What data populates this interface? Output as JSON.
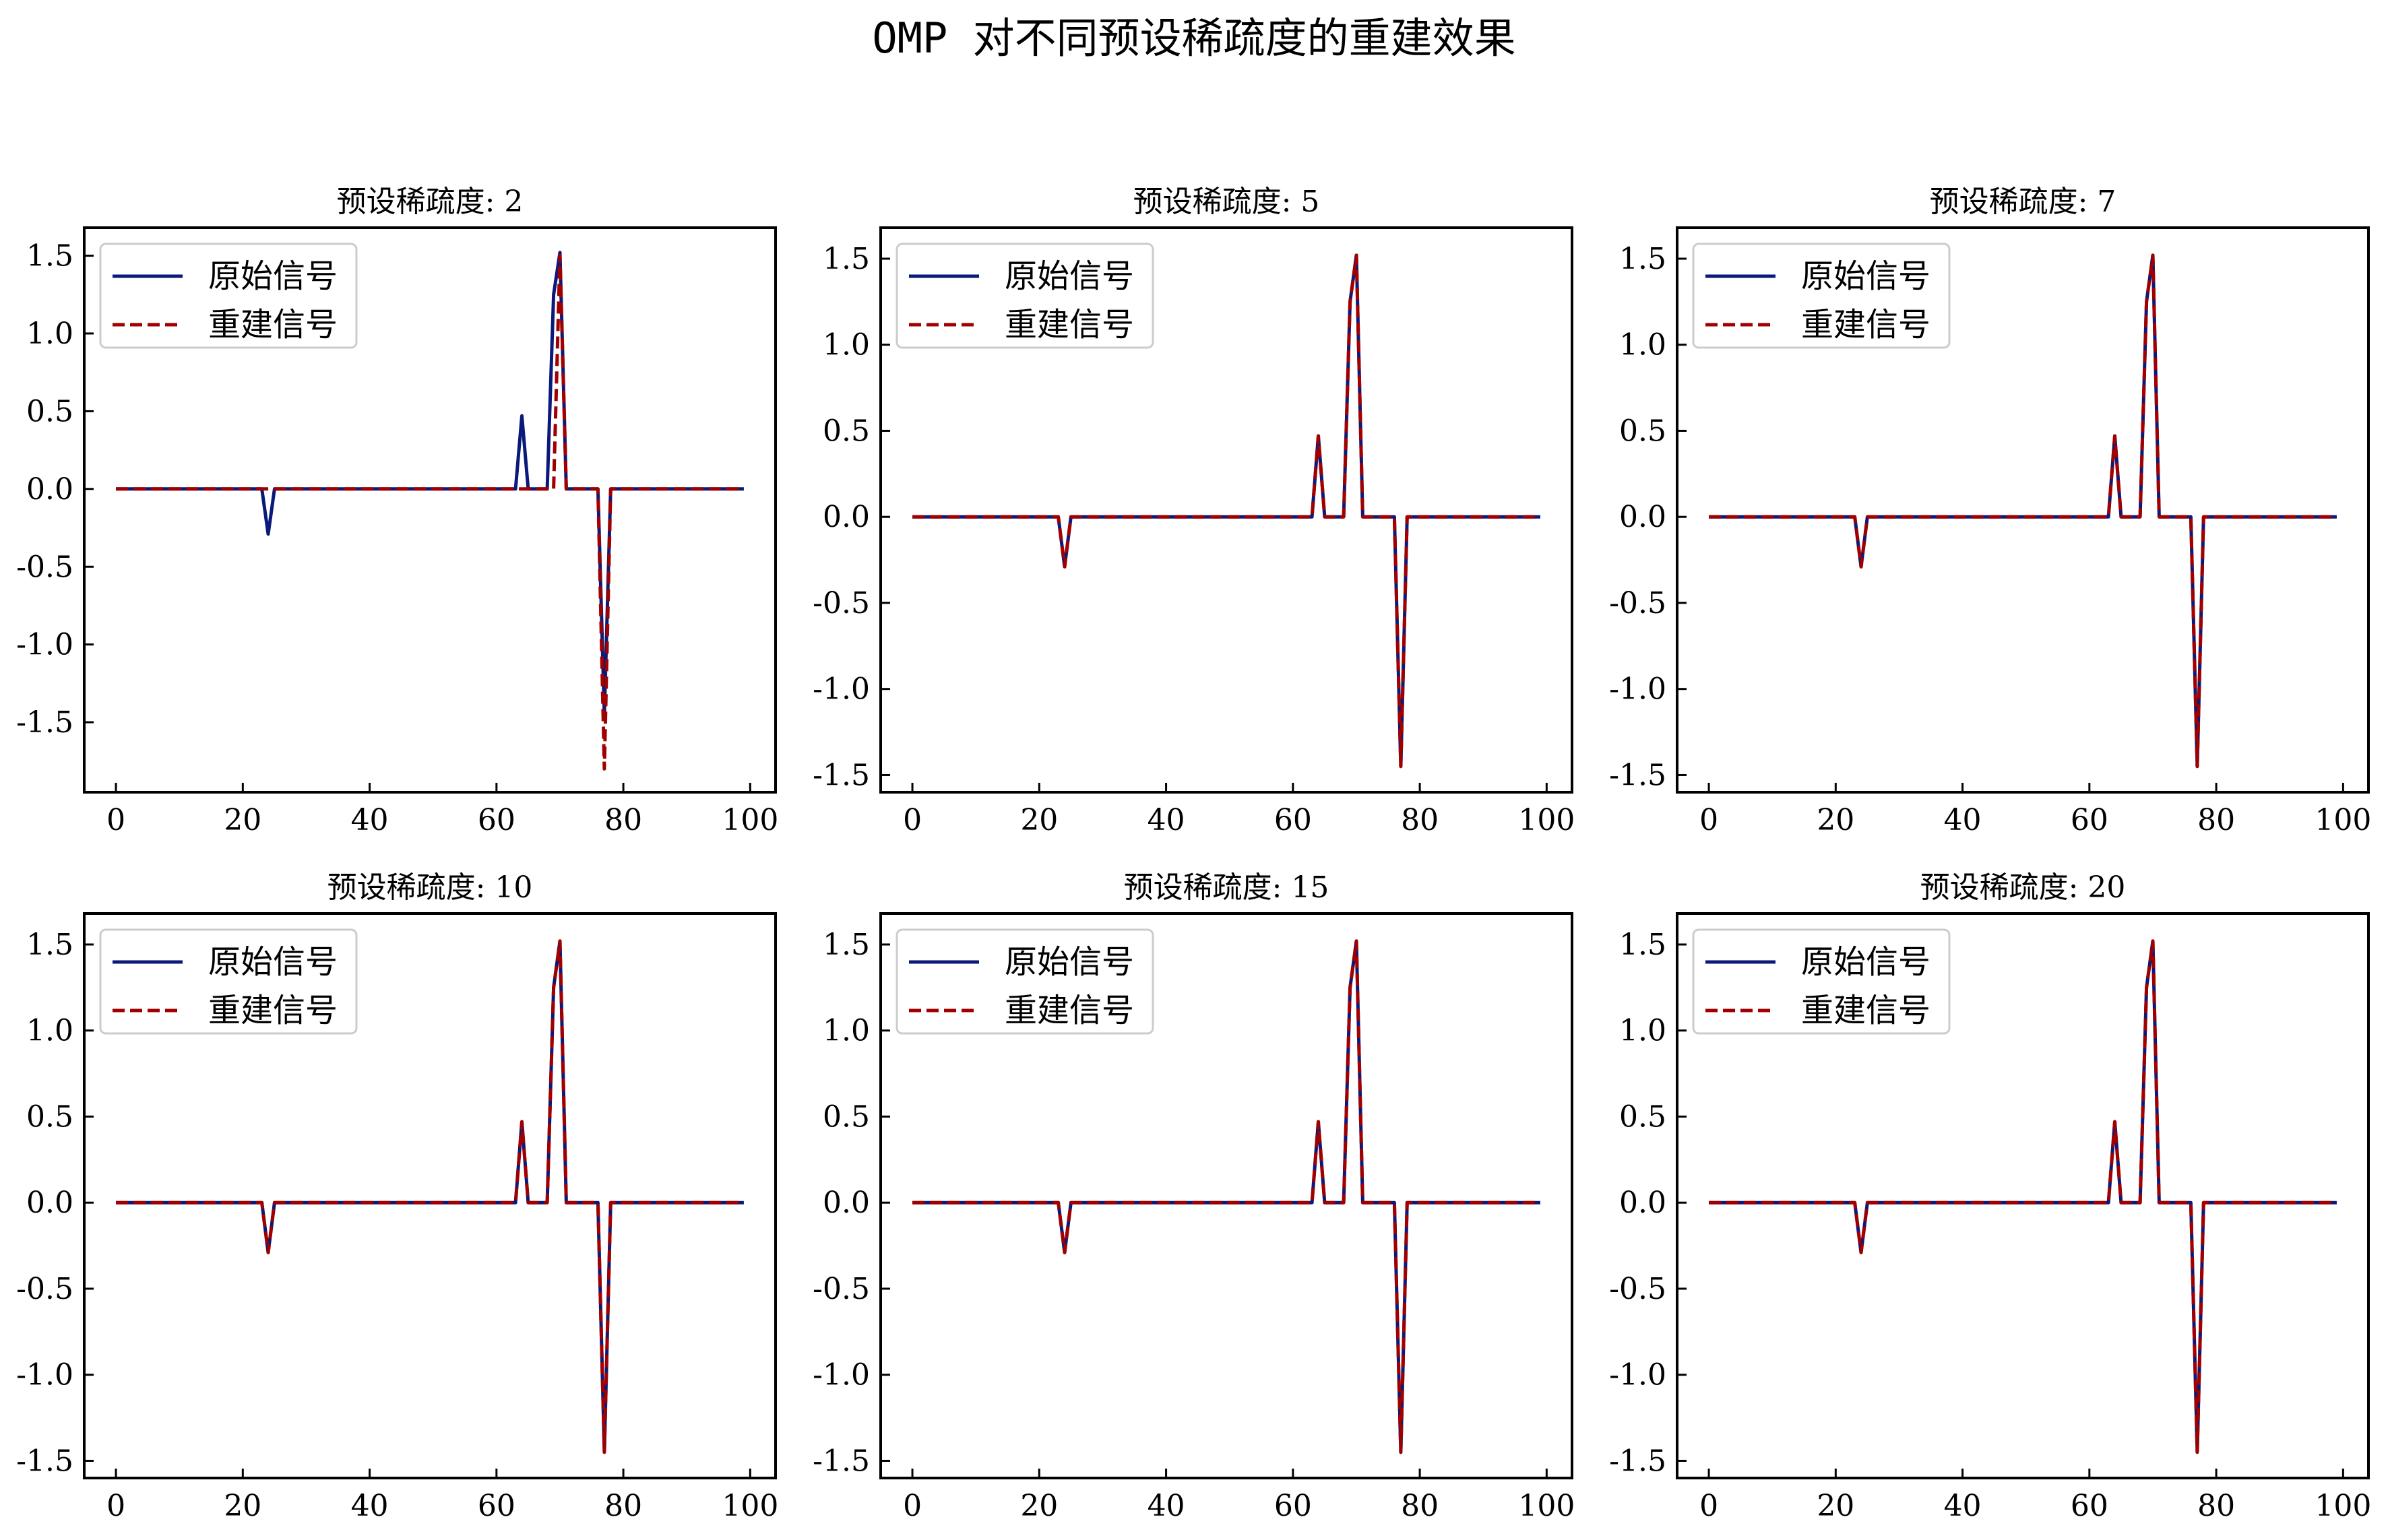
{
  "figure": {
    "title": "OMP 对不同预设稀疏度的重建效果"
  },
  "colors": {
    "original": "#0b1a7a",
    "reconstructed": "#a00000"
  },
  "legend": {
    "original_label": "原始信号",
    "reconstructed_label": "重建信号",
    "placement": "upper-left"
  },
  "chart_data": [
    {
      "type": "line",
      "title": "预设稀疏度: 2",
      "xlim": [
        -5,
        104
      ],
      "ylim": [
        -1.95,
        1.68
      ],
      "xticks": [
        0,
        20,
        40,
        60,
        80,
        100
      ],
      "yticks": [
        -1.5,
        -1.0,
        -0.5,
        0.0,
        0.5,
        1.0,
        1.5
      ],
      "ytick_labels": [
        "-1.5",
        "-1.0",
        "-0.5",
        "0.0",
        "0.5",
        "1.0",
        "1.5"
      ],
      "grid": false,
      "series": [
        {
          "name": "原始信号",
          "style": "solid",
          "x": [
            0,
            23,
            24,
            25,
            63,
            64,
            65,
            68,
            69,
            70,
            71,
            76,
            77,
            78,
            99
          ],
          "y": [
            0,
            0,
            -0.29,
            0,
            0,
            0.47,
            0,
            0,
            1.25,
            1.52,
            0,
            0,
            -1.45,
            0,
            0
          ]
        },
        {
          "name": "重建信号",
          "style": "dashed",
          "x": [
            0,
            69,
            70,
            71,
            76,
            77,
            78,
            99
          ],
          "y": [
            0,
            0,
            1.5,
            0,
            0,
            -1.8,
            0,
            0
          ]
        }
      ]
    },
    {
      "type": "line",
      "title": "预设稀疏度: 5",
      "xlim": [
        -5,
        104
      ],
      "ylim": [
        -1.6,
        1.68
      ],
      "xticks": [
        0,
        20,
        40,
        60,
        80,
        100
      ],
      "yticks": [
        -1.5,
        -1.0,
        -0.5,
        0.0,
        0.5,
        1.0,
        1.5
      ],
      "ytick_labels": [
        "-1.5",
        "-1.0",
        "-0.5",
        "0.0",
        "0.5",
        "1.0",
        "1.5"
      ],
      "grid": false,
      "series": [
        {
          "name": "原始信号",
          "style": "solid",
          "x": [
            0,
            23,
            24,
            25,
            63,
            64,
            65,
            68,
            69,
            70,
            71,
            76,
            77,
            78,
            99
          ],
          "y": [
            0,
            0,
            -0.29,
            0,
            0,
            0.47,
            0,
            0,
            1.25,
            1.52,
            0,
            0,
            -1.45,
            0,
            0
          ]
        },
        {
          "name": "重建信号",
          "style": "dashed",
          "x": [
            0,
            23,
            24,
            25,
            63,
            64,
            65,
            68,
            69,
            70,
            71,
            76,
            77,
            78,
            99
          ],
          "y": [
            0,
            0,
            -0.29,
            0,
            0,
            0.47,
            0,
            0,
            1.25,
            1.52,
            0,
            0,
            -1.45,
            0,
            0
          ]
        }
      ]
    },
    {
      "type": "line",
      "title": "预设稀疏度: 7",
      "xlim": [
        -5,
        104
      ],
      "ylim": [
        -1.6,
        1.68
      ],
      "xticks": [
        0,
        20,
        40,
        60,
        80,
        100
      ],
      "yticks": [
        -1.5,
        -1.0,
        -0.5,
        0.0,
        0.5,
        1.0,
        1.5
      ],
      "ytick_labels": [
        "-1.5",
        "-1.0",
        "-0.5",
        "0.0",
        "0.5",
        "1.0",
        "1.5"
      ],
      "grid": false,
      "series": [
        {
          "name": "原始信号",
          "style": "solid",
          "x": [
            0,
            23,
            24,
            25,
            63,
            64,
            65,
            68,
            69,
            70,
            71,
            76,
            77,
            78,
            99
          ],
          "y": [
            0,
            0,
            -0.29,
            0,
            0,
            0.47,
            0,
            0,
            1.25,
            1.52,
            0,
            0,
            -1.45,
            0,
            0
          ]
        },
        {
          "name": "重建信号",
          "style": "dashed",
          "x": [
            0,
            23,
            24,
            25,
            63,
            64,
            65,
            68,
            69,
            70,
            71,
            76,
            77,
            78,
            99
          ],
          "y": [
            0,
            0,
            -0.29,
            0,
            0,
            0.47,
            0,
            0,
            1.25,
            1.52,
            0,
            0,
            -1.45,
            0,
            0
          ]
        }
      ]
    },
    {
      "type": "line",
      "title": "预设稀疏度: 10",
      "xlim": [
        -5,
        104
      ],
      "ylim": [
        -1.6,
        1.68
      ],
      "xticks": [
        0,
        20,
        40,
        60,
        80,
        100
      ],
      "yticks": [
        -1.5,
        -1.0,
        -0.5,
        0.0,
        0.5,
        1.0,
        1.5
      ],
      "ytick_labels": [
        "-1.5",
        "-1.0",
        "-0.5",
        "0.0",
        "0.5",
        "1.0",
        "1.5"
      ],
      "grid": false,
      "series": [
        {
          "name": "原始信号",
          "style": "solid",
          "x": [
            0,
            23,
            24,
            25,
            63,
            64,
            65,
            68,
            69,
            70,
            71,
            76,
            77,
            78,
            99
          ],
          "y": [
            0,
            0,
            -0.29,
            0,
            0,
            0.47,
            0,
            0,
            1.25,
            1.52,
            0,
            0,
            -1.45,
            0,
            0
          ]
        },
        {
          "name": "重建信号",
          "style": "dashed",
          "x": [
            0,
            23,
            24,
            25,
            63,
            64,
            65,
            68,
            69,
            70,
            71,
            76,
            77,
            78,
            99
          ],
          "y": [
            0,
            0,
            -0.29,
            0,
            0,
            0.47,
            0,
            0,
            1.25,
            1.52,
            0,
            0,
            -1.45,
            0,
            0
          ]
        }
      ]
    },
    {
      "type": "line",
      "title": "预设稀疏度: 15",
      "xlim": [
        -5,
        104
      ],
      "ylim": [
        -1.6,
        1.68
      ],
      "xticks": [
        0,
        20,
        40,
        60,
        80,
        100
      ],
      "yticks": [
        -1.5,
        -1.0,
        -0.5,
        0.0,
        0.5,
        1.0,
        1.5
      ],
      "ytick_labels": [
        "-1.5",
        "-1.0",
        "-0.5",
        "0.0",
        "0.5",
        "1.0",
        "1.5"
      ],
      "grid": false,
      "series": [
        {
          "name": "原始信号",
          "style": "solid",
          "x": [
            0,
            23,
            24,
            25,
            63,
            64,
            65,
            68,
            69,
            70,
            71,
            76,
            77,
            78,
            99
          ],
          "y": [
            0,
            0,
            -0.29,
            0,
            0,
            0.47,
            0,
            0,
            1.25,
            1.52,
            0,
            0,
            -1.45,
            0,
            0
          ]
        },
        {
          "name": "重建信号",
          "style": "dashed",
          "x": [
            0,
            23,
            24,
            25,
            63,
            64,
            65,
            68,
            69,
            70,
            71,
            76,
            77,
            78,
            99
          ],
          "y": [
            0,
            0,
            -0.29,
            0,
            0,
            0.47,
            0,
            0,
            1.25,
            1.52,
            0,
            0,
            -1.45,
            0,
            0
          ]
        }
      ]
    },
    {
      "type": "line",
      "title": "预设稀疏度: 20",
      "xlim": [
        -5,
        104
      ],
      "ylim": [
        -1.6,
        1.68
      ],
      "xticks": [
        0,
        20,
        40,
        60,
        80,
        100
      ],
      "yticks": [
        -1.5,
        -1.0,
        -0.5,
        0.0,
        0.5,
        1.0,
        1.5
      ],
      "ytick_labels": [
        "-1.5",
        "-1.0",
        "-0.5",
        "0.0",
        "0.5",
        "1.0",
        "1.5"
      ],
      "grid": false,
      "series": [
        {
          "name": "原始信号",
          "style": "solid",
          "x": [
            0,
            23,
            24,
            25,
            63,
            64,
            65,
            68,
            69,
            70,
            71,
            76,
            77,
            78,
            99
          ],
          "y": [
            0,
            0,
            -0.29,
            0,
            0,
            0.47,
            0,
            0,
            1.25,
            1.52,
            0,
            0,
            -1.45,
            0,
            0
          ]
        },
        {
          "name": "重建信号",
          "style": "dashed",
          "x": [
            0,
            23,
            24,
            25,
            63,
            64,
            65,
            68,
            69,
            70,
            71,
            76,
            77,
            78,
            99
          ],
          "y": [
            0,
            0,
            -0.29,
            0,
            0,
            0.47,
            0,
            0,
            1.25,
            1.52,
            0,
            0,
            -1.45,
            0,
            0
          ]
        }
      ]
    }
  ]
}
